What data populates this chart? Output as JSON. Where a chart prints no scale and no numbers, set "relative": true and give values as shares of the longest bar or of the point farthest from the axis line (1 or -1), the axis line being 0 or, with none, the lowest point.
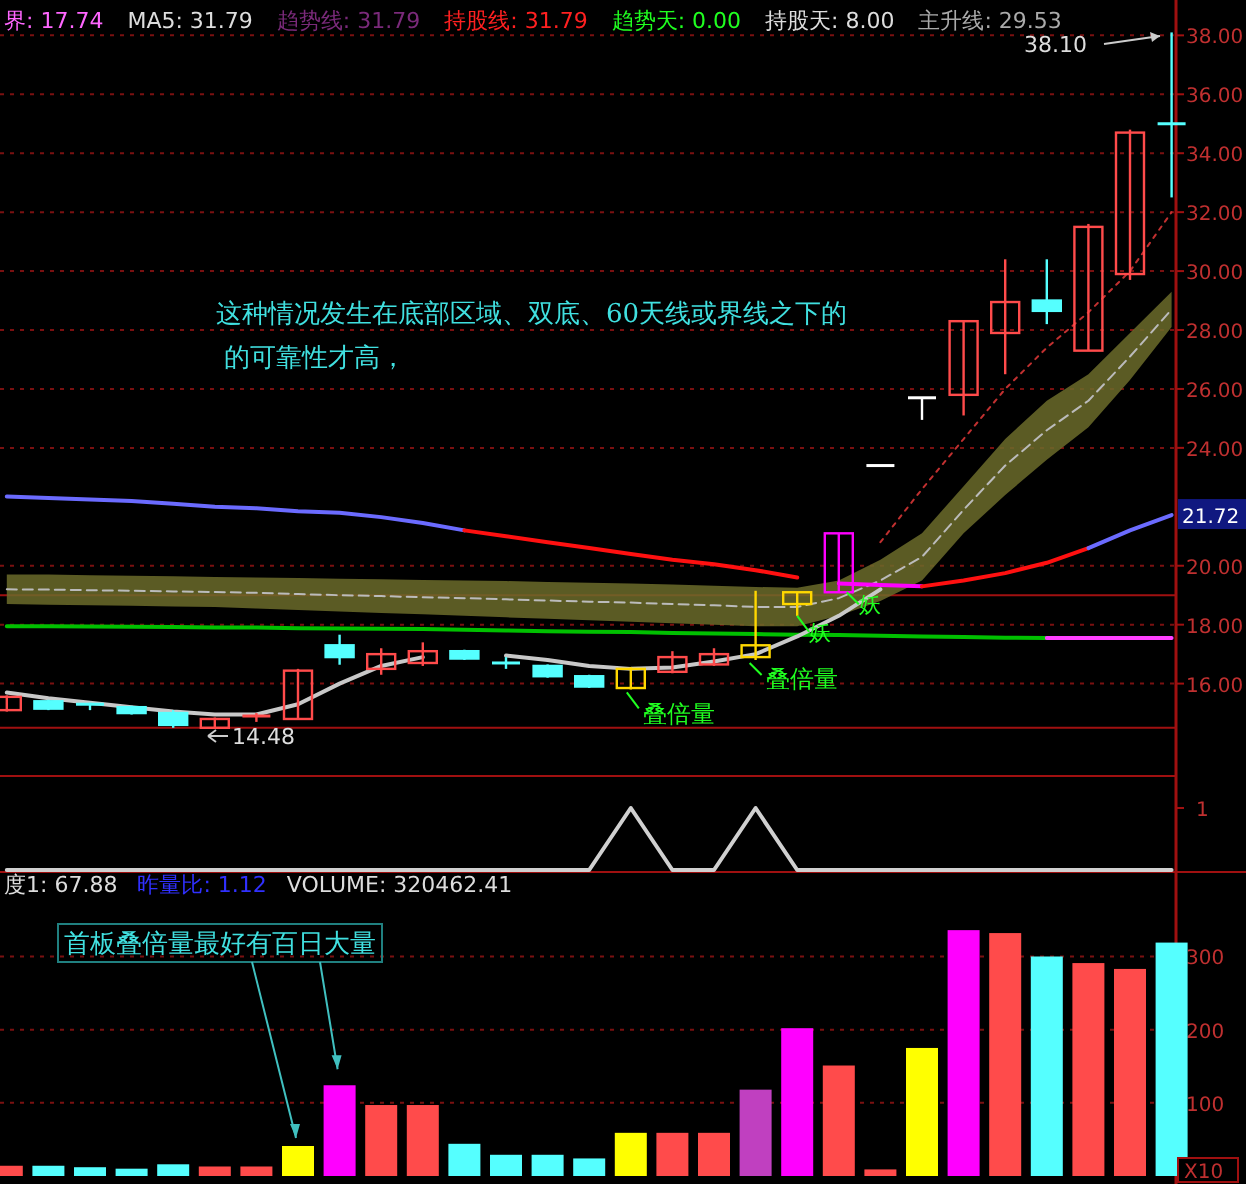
{
  "chart_data": [
    {
      "type": "candlestick",
      "categories": [
        null,
        null,
        null,
        null,
        null,
        null,
        null,
        null,
        null,
        null,
        null,
        null,
        null,
        null,
        null,
        null,
        null,
        null,
        null,
        null,
        null,
        null,
        null,
        null,
        null,
        null,
        null,
        null,
        null
      ],
      "ohlc": [
        [
          15.1,
          15.6,
          15.05,
          15.55
        ],
        [
          15.4,
          15.45,
          15.1,
          15.15
        ],
        [
          15.3,
          15.35,
          15.1,
          15.2
        ],
        [
          15.2,
          15.25,
          14.95,
          15.0
        ],
        [
          15.0,
          15.1,
          14.5,
          14.6
        ],
        [
          14.5,
          14.85,
          14.48,
          14.8
        ],
        [
          14.8,
          15.0,
          14.7,
          14.9
        ],
        [
          14.8,
          16.5,
          14.8,
          16.44
        ],
        [
          17.3,
          17.66,
          16.64,
          16.9
        ],
        [
          16.5,
          17.2,
          16.3,
          17.0
        ],
        [
          16.7,
          17.4,
          16.6,
          17.1
        ],
        [
          17.1,
          17.15,
          16.8,
          16.85
        ],
        [
          16.7,
          16.9,
          16.5,
          16.65
        ],
        [
          16.6,
          16.65,
          16.2,
          16.25
        ],
        [
          16.25,
          16.3,
          15.85,
          15.9
        ],
        [
          15.85,
          16.55,
          15.8,
          16.5
        ],
        [
          16.4,
          17.1,
          16.35,
          16.9
        ],
        [
          16.65,
          17.2,
          16.6,
          17.0
        ],
        [
          16.9,
          19.15,
          16.8,
          17.3
        ],
        [
          18.7,
          19.1,
          18.3,
          19.1
        ],
        [
          19.1,
          21.1,
          19.1,
          21.1
        ],
        [
          23.4,
          23.4,
          23.4,
          23.4
        ],
        [
          25.7,
          25.7,
          24.95,
          25.7
        ],
        [
          25.8,
          28.3,
          25.1,
          28.3
        ],
        [
          27.9,
          30.4,
          26.5,
          28.95
        ],
        [
          29.0,
          30.4,
          28.2,
          28.65
        ],
        [
          27.3,
          31.6,
          27.3,
          31.5
        ],
        [
          29.9,
          34.8,
          29.7,
          34.7
        ],
        [
          35.0,
          38.1,
          32.5,
          34.95
        ]
      ],
      "colors": [
        "#ff4b4b",
        "#55ffff",
        "#55ffff",
        "#55ffff",
        "#55ffff",
        "#ff4b4b",
        "#ff4b4b",
        "#ff4b4b",
        "#55ffff",
        "#ff4b4b",
        "#ff4b4b",
        "#55ffff",
        "#55ffff",
        "#55ffff",
        "#55ffff",
        "#ffd700",
        "#ff4b4b",
        "#ff4b4b",
        "#ffd700",
        "#ffd700",
        "#ff00ff",
        "#ffffff",
        "#ffffff",
        "#ff4b4b",
        "#ff4b4b",
        "#55ffff",
        "#ff4b4b",
        "#ff4b4b",
        "#55ffff"
      ],
      "series": [
        {
          "type": "line",
          "color": "#bbbbbb",
          "line_style": "dashed",
          "values": [
            19.2,
            19.19,
            19.17,
            19.15,
            19.13,
            19.11,
            19.08,
            19.04,
            19.0,
            18.97,
            18.93,
            18.9,
            18.86,
            18.82,
            18.78,
            18.75,
            18.7,
            18.66,
            18.6,
            18.6,
            18.9,
            19.5,
            20.3,
            21.9,
            23.4,
            24.6,
            25.6,
            27.1,
            28.7
          ],
          "upper": [
            19.7,
            19.7,
            19.68,
            19.66,
            19.64,
            19.62,
            19.6,
            19.58,
            19.56,
            19.54,
            19.52,
            19.5,
            19.48,
            19.45,
            19.42,
            19.4,
            19.36,
            19.32,
            19.28,
            19.25,
            19.5,
            20.2,
            21.1,
            22.7,
            24.3,
            25.6,
            26.5,
            27.9,
            29.3
          ],
          "lower": [
            18.7,
            18.68,
            18.66,
            18.64,
            18.62,
            18.6,
            18.55,
            18.5,
            18.45,
            18.4,
            18.35,
            18.3,
            18.25,
            18.2,
            18.15,
            18.1,
            18.05,
            18.0,
            17.95,
            17.95,
            18.3,
            18.8,
            19.5,
            21.1,
            22.4,
            23.6,
            24.7,
            26.3,
            28.1
          ]
        },
        {
          "type": "line",
          "color": "#6b6bff",
          "values": [
            22.35,
            22.3,
            22.25,
            22.2,
            22.1,
            22.0,
            21.95,
            21.85,
            21.8,
            21.65,
            21.45,
            21.2,
            null,
            null,
            null,
            null,
            null,
            null,
            null,
            null,
            null,
            null,
            null,
            null,
            null,
            null,
            null,
            null,
            null
          ]
        },
        {
          "type": "line",
          "color": "#ff1010",
          "values": [
            null,
            null,
            null,
            null,
            null,
            null,
            null,
            null,
            null,
            null,
            null,
            21.2,
            21.0,
            20.8,
            20.6,
            20.4,
            20.2,
            20.05,
            19.85,
            19.6,
            null,
            null,
            null,
            null,
            null,
            null,
            null,
            null,
            null
          ]
        },
        {
          "type": "line",
          "color": "#ff00ff",
          "values": [
            null,
            null,
            null,
            null,
            null,
            null,
            null,
            null,
            null,
            null,
            null,
            null,
            null,
            null,
            null,
            null,
            null,
            null,
            null,
            null,
            19.4,
            19.35,
            19.3,
            null,
            null,
            null,
            null,
            null,
            null
          ]
        },
        {
          "type": "line",
          "color": "#ff1010",
          "values": [
            null,
            null,
            null,
            null,
            null,
            null,
            null,
            null,
            null,
            null,
            null,
            null,
            null,
            null,
            null,
            null,
            null,
            null,
            null,
            null,
            null,
            null,
            19.3,
            19.5,
            19.75,
            20.1,
            20.6,
            null,
            null
          ]
        },
        {
          "type": "line",
          "color": "#6b6bff",
          "values": [
            null,
            null,
            null,
            null,
            null,
            null,
            null,
            null,
            null,
            null,
            null,
            null,
            null,
            null,
            null,
            null,
            null,
            null,
            null,
            null,
            null,
            null,
            null,
            null,
            null,
            null,
            20.6,
            21.2,
            21.72
          ]
        },
        {
          "type": "line",
          "color": "#00c000",
          "values": [
            17.95,
            17.95,
            17.94,
            17.93,
            17.92,
            17.9,
            17.9,
            17.88,
            17.87,
            17.86,
            17.85,
            17.83,
            17.8,
            17.78,
            17.76,
            17.75,
            17.72,
            17.7,
            17.68,
            17.66,
            17.65,
            17.62,
            17.6,
            17.58,
            17.56,
            17.55,
            null,
            null,
            null
          ]
        },
        {
          "type": "line",
          "color": "#ff40ff",
          "values": [
            null,
            null,
            null,
            null,
            null,
            null,
            null,
            null,
            null,
            null,
            null,
            null,
            null,
            null,
            null,
            null,
            null,
            null,
            null,
            null,
            null,
            null,
            null,
            null,
            null,
            17.55,
            17.55,
            17.55,
            17.55
          ]
        },
        {
          "type": "line",
          "color": "#c03030",
          "line_style": "dotted",
          "values": [
            null,
            null,
            null,
            null,
            null,
            null,
            null,
            null,
            null,
            null,
            null,
            null,
            null,
            null,
            null,
            null,
            null,
            null,
            null,
            null,
            null,
            20.8,
            22.6,
            24.3,
            26.0,
            27.4,
            28.6,
            30.0,
            32.0
          ]
        },
        {
          "type": "line",
          "color": "#c8c8c8",
          "values": [
            15.7,
            15.5,
            15.35,
            15.2,
            15.05,
            14.95,
            14.95,
            15.3,
            16.0,
            16.6,
            16.9,
            null,
            16.95,
            16.8,
            16.6,
            16.5,
            16.55,
            16.75,
            17.0,
            17.6,
            18.3,
            19.2,
            null,
            null,
            null,
            null,
            null,
            null,
            null
          ]
        }
      ],
      "ylim": [
        13,
        39.2
      ],
      "yticks": [
        {
          "value": 16,
          "label": "16.00"
        },
        {
          "value": 18,
          "label": "18.00"
        },
        {
          "value": 20,
          "label": "20.00"
        },
        {
          "value": 24,
          "label": "24.00"
        },
        {
          "value": 26,
          "label": "26.00"
        },
        {
          "value": 28,
          "label": "28.00"
        },
        {
          "value": 30,
          "label": "30.00"
        },
        {
          "value": 32,
          "label": "32.00"
        },
        {
          "value": 34,
          "label": "34.00"
        },
        {
          "value": 36,
          "label": "36.00"
        },
        {
          "value": 38,
          "label": "38.00"
        }
      ],
      "grid": "y",
      "ref_lines": [
        {
          "axis": "y",
          "value": 14.5,
          "color": "#a01010"
        },
        {
          "axis": "y",
          "value": 19.0,
          "color": "#a01010"
        }
      ],
      "annotations": [
        "界: 17.74",
        "MA5: 31.79",
        "趋势线: 31.79",
        "持股线: 31.79",
        "趋势天: 0.00",
        "持股天: 8.00",
        "主升线: 29.53",
        "38.10",
        "14.48",
        "叠倍量",
        "叠倍量",
        "妖",
        "妖",
        "这种情况发生在底部区域、双底、60天线或界线之下的",
        "的可靠性才高，",
        {
          "text": "21.72",
          "y": 21.72
        }
      ]
    },
    {
      "type": "line",
      "categories": [
        null,
        null,
        null,
        null,
        null,
        null,
        null,
        null,
        null,
        null,
        null,
        null,
        null,
        null,
        null,
        null,
        null,
        null,
        null,
        null,
        null,
        null,
        null,
        null,
        null,
        null,
        null,
        null,
        null
      ],
      "relative": true,
      "series": [
        {
          "type": "line",
          "color": "#d0d0d0",
          "values": [
            0,
            0,
            0,
            0,
            0,
            0,
            0,
            0,
            0,
            0,
            0,
            0,
            0,
            0,
            0,
            1,
            0,
            0,
            1,
            0,
            0,
            0,
            0,
            0,
            0,
            0,
            0,
            0,
            0
          ]
        }
      ],
      "annotations": [
        "1"
      ]
    },
    {
      "type": "bar",
      "categories": [
        null,
        null,
        null,
        null,
        null,
        null,
        null,
        null,
        null,
        null,
        null,
        null,
        null,
        null,
        null,
        null,
        null,
        null,
        null,
        null,
        null,
        null,
        null,
        null,
        null,
        null,
        null,
        null,
        null
      ],
      "values": [
        14,
        14,
        12,
        10,
        16,
        13,
        13,
        41,
        124,
        97,
        97,
        44,
        29,
        29,
        24,
        59,
        59,
        59,
        118,
        202,
        151,
        9,
        175,
        336,
        332,
        300,
        291,
        283,
        319
      ],
      "colors": [
        "#ff4b4b",
        "#55ffff",
        "#55ffff",
        "#55ffff",
        "#55ffff",
        "#ff4b4b",
        "#ff4b4b",
        "#ffff00",
        "#ff00ff",
        "#ff4b4b",
        "#ff4b4b",
        "#55ffff",
        "#55ffff",
        "#55ffff",
        "#55ffff",
        "#ffff00",
        "#ff4b4b",
        "#ff4b4b",
        "#c040c0",
        "#ff00ff",
        "#ff4b4b",
        "#ff4b4b",
        "#ffff00",
        "#ff00ff",
        "#ff4b4b",
        "#55ffff",
        "#ff4b4b",
        "#ff4b4b",
        "#55ffff"
      ],
      "ylim": [
        0,
        410
      ],
      "yticks": [
        100,
        200,
        300
      ],
      "grid": "y",
      "annotations": [
        "度1: 67.88",
        "昨量比: 1.12",
        "VOLUME: 320462.41",
        "首板叠倍量最好有百日大量",
        "X10"
      ]
    }
  ]
}
